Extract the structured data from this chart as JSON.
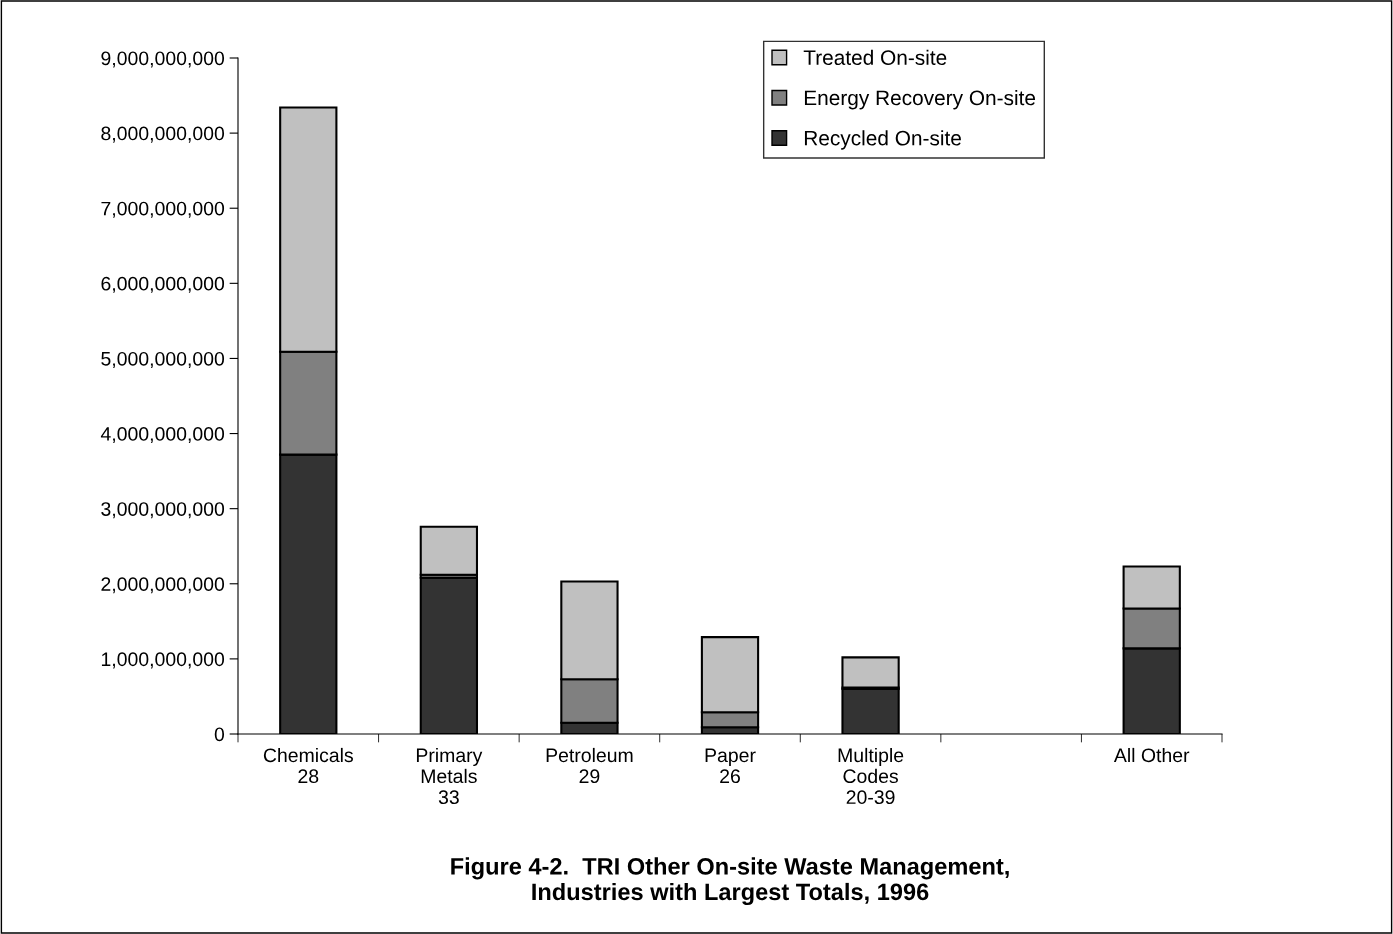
{
  "chart_data": {
    "type": "bar",
    "stacked": true,
    "title": "Figure 4-2.  TRI Other On-site Waste Management,\nIndustries with Largest Totals, 1996",
    "categories": [
      "Chemicals\n28",
      "Primary\nMetals\n33",
      "Petroleum\n29",
      "Paper\n26",
      "Multiple\nCodes\n20-39",
      null,
      "All Other"
    ],
    "series": [
      {
        "name": "Recycled On-site",
        "color": "#333333",
        "values": [
          3720000000,
          2080000000,
          150000000,
          90000000,
          600000000,
          null,
          1140000000
        ]
      },
      {
        "name": "Energy Recovery On-site",
        "color": "#808080",
        "values": [
          1370000000,
          40000000,
          580000000,
          200000000,
          20000000,
          null,
          530000000
        ]
      },
      {
        "name": "Treated On-site",
        "color": "#c0c0c0",
        "values": [
          3250000000,
          640000000,
          1300000000,
          1000000000,
          400000000,
          null,
          560000000
        ]
      }
    ],
    "ylim": [
      0,
      9000000000
    ],
    "yticks": [
      {
        "value": 0,
        "label": "0"
      },
      {
        "value": 1000000000,
        "label": "1,000,000,000"
      },
      {
        "value": 2000000000,
        "label": "2,000,000,000"
      },
      {
        "value": 3000000000,
        "label": "3,000,000,000"
      },
      {
        "value": 4000000000,
        "label": "4,000,000,000"
      },
      {
        "value": 5000000000,
        "label": "5,000,000,000"
      },
      {
        "value": 6000000000,
        "label": "6,000,000,000"
      },
      {
        "value": 7000000000,
        "label": "7,000,000,000"
      },
      {
        "value": 8000000000,
        "label": "8,000,000,000"
      },
      {
        "value": 9000000000,
        "label": "9,000,000,000"
      }
    ],
    "grid": false,
    "legend": "top right"
  }
}
